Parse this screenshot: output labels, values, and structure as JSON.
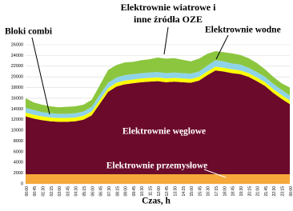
{
  "chart_data": {
    "type": "stacked_area",
    "x_label": "Czas, h",
    "categories": [
      "00:00",
      "00:45",
      "01:30",
      "02:15",
      "03:00",
      "03:45",
      "04:30",
      "05:15",
      "06:00",
      "06:45",
      "07:30",
      "08:15",
      "09:00",
      "09:45",
      "10:30",
      "11:15",
      "12:00",
      "12:45",
      "13:30",
      "14:15",
      "15:00",
      "15:45",
      "16:30",
      "17:15",
      "18:00",
      "18:45",
      "19:30",
      "20:15",
      "21:00",
      "21:45",
      "22:30",
      "23:15",
      "00:00"
    ],
    "series": [
      {
        "name": "Elektrownie przemysłowe",
        "color": "#f7a83a",
        "values": [
          1800,
          1800,
          1800,
          1800,
          1800,
          1800,
          1800,
          1800,
          1800,
          1800,
          1800,
          1800,
          1800,
          1800,
          1800,
          1800,
          1800,
          1800,
          1800,
          1800,
          1800,
          1800,
          1800,
          1800,
          1800,
          1800,
          1800,
          1800,
          1800,
          1800,
          1800,
          1800,
          1800
        ]
      },
      {
        "name": "Elektrownie węglowe",
        "color": "#6b0a2a",
        "values": [
          10800,
          10400,
          10100,
          9900,
          9800,
          9800,
          9900,
          10200,
          11000,
          13200,
          15400,
          16400,
          16800,
          17000,
          17200,
          17300,
          17400,
          17200,
          17300,
          17200,
          17100,
          17500,
          18500,
          19400,
          19200,
          18900,
          18700,
          18200,
          17400,
          16500,
          15200,
          14100,
          13100
        ]
      },
      {
        "name": "Bloki combi",
        "color": "#ffff00",
        "values": [
          700,
          700,
          700,
          700,
          700,
          700,
          700,
          700,
          700,
          700,
          700,
          700,
          700,
          700,
          700,
          700,
          700,
          700,
          700,
          700,
          700,
          700,
          700,
          700,
          700,
          700,
          700,
          700,
          700,
          700,
          700,
          700,
          700
        ]
      },
      {
        "name": "Elektrownie wodne",
        "color": "#8fd3e8",
        "values": [
          900,
          900,
          800,
          800,
          800,
          800,
          800,
          800,
          900,
          1000,
          1000,
          1000,
          1000,
          1000,
          1000,
          1000,
          1000,
          1000,
          1000,
          1000,
          1000,
          1000,
          1100,
          1200,
          1200,
          1100,
          1100,
          1000,
          1000,
          1000,
          1000,
          1000,
          900
        ]
      },
      {
        "name": "Elektrownie wiatrowe i inne źródła OZE",
        "color": "#8cc63f",
        "values": [
          1800,
          1400,
          1400,
          1300,
          1200,
          1300,
          1300,
          1300,
          1300,
          1800,
          2400,
          2300,
          2400,
          2300,
          2400,
          2500,
          2700,
          2700,
          2700,
          2500,
          2300,
          2400,
          2200,
          1700,
          1700,
          1900,
          1800,
          1800,
          1700,
          1400,
          1300,
          1200,
          1500
        ]
      }
    ],
    "ylim": [
      0,
      26000
    ],
    "yticks": [
      0,
      2000,
      4000,
      6000,
      8000,
      10000,
      12000,
      14000,
      16000,
      18000,
      20000,
      22000,
      24000,
      26000
    ],
    "grid": true
  }
}
